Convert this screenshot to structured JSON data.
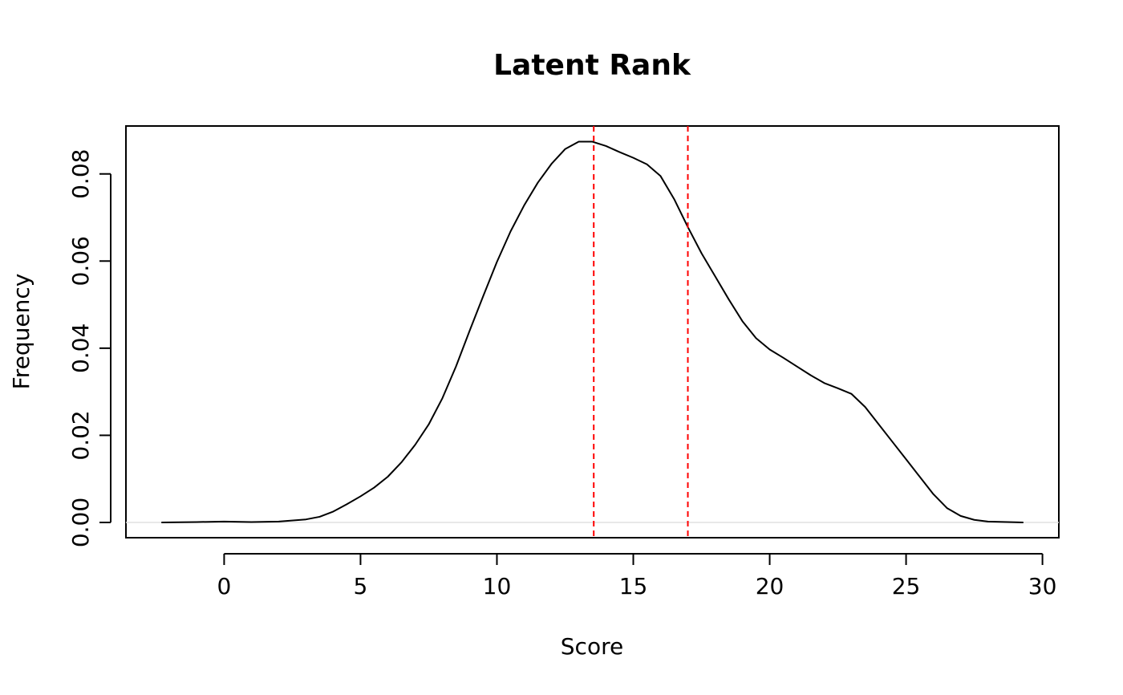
{
  "chart_data": {
    "type": "line",
    "title": "Latent Rank",
    "xlabel": "Score",
    "ylabel": "Frequency",
    "xlim": [
      -3.6,
      30.6
    ],
    "ylim": [
      -0.0035,
      0.091
    ],
    "x_ticks": [
      0,
      5,
      10,
      15,
      20,
      25,
      30
    ],
    "x_tick_labels": [
      "0",
      "5",
      "10",
      "15",
      "20",
      "25",
      "30"
    ],
    "y_ticks": [
      0.0,
      0.02,
      0.04,
      0.06,
      0.08
    ],
    "y_tick_labels": [
      "0.00",
      "0.02",
      "0.04",
      "0.06",
      "0.08"
    ],
    "grid": false,
    "legend": "none",
    "baseline": {
      "y": 0,
      "color": "#e0e0e0"
    },
    "series": [
      {
        "color": "#000000",
        "x": [
          -2.3,
          -1,
          0,
          1,
          2,
          3,
          3.5,
          4,
          4.5,
          5,
          5.5,
          6,
          6.5,
          7,
          7.5,
          8,
          8.5,
          9,
          9.5,
          10,
          10.5,
          11,
          11.5,
          12,
          12.5,
          13,
          13.5,
          14,
          14.5,
          15,
          15.5,
          16,
          16.5,
          17,
          17.5,
          18,
          18.5,
          19,
          19.5,
          20,
          20.5,
          21,
          21.5,
          22,
          22.5,
          23,
          23.5,
          24,
          24.5,
          25,
          25.5,
          26,
          26.5,
          27,
          27.5,
          28,
          29.3
        ],
        "y": [
          0.0,
          0.0001,
          0.0002,
          0.0001,
          0.0002,
          0.0007,
          0.0013,
          0.0025,
          0.0042,
          0.006,
          0.008,
          0.0105,
          0.0138,
          0.0178,
          0.0225,
          0.0285,
          0.0358,
          0.044,
          0.052,
          0.0598,
          0.0668,
          0.0728,
          0.078,
          0.0823,
          0.0857,
          0.0874,
          0.0874,
          0.0864,
          0.085,
          0.0837,
          0.0822,
          0.0795,
          0.0742,
          0.0678,
          0.0618,
          0.0565,
          0.0512,
          0.0462,
          0.0423,
          0.0397,
          0.0378,
          0.0358,
          0.0338,
          0.032,
          0.0308,
          0.0295,
          0.0265,
          0.0225,
          0.0185,
          0.0145,
          0.0105,
          0.0065,
          0.0033,
          0.0015,
          0.0006,
          0.0002,
          0.0
        ]
      }
    ],
    "vlines": [
      {
        "x": 13.55,
        "color": "#ff0000",
        "style": "dashed"
      },
      {
        "x": 17.0,
        "color": "#ff0000",
        "style": "dashed"
      }
    ]
  }
}
